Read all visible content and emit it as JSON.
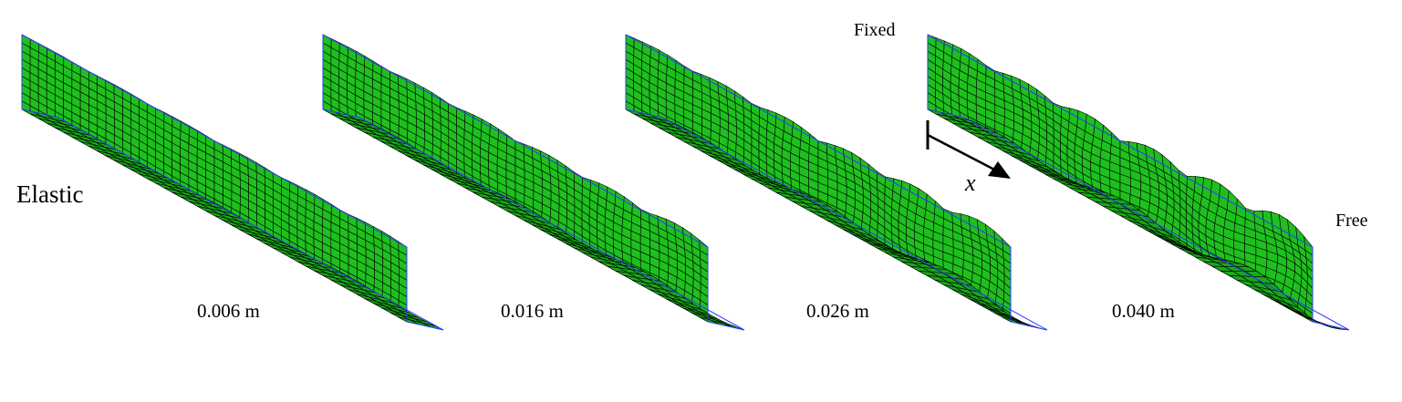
{
  "labels": {
    "material": "Elastic",
    "fixed_end": "Fixed",
    "free_end": "Free",
    "axis": "x"
  },
  "panels": [
    {
      "displacement": "0.006 m",
      "amplitude": 0.006
    },
    {
      "displacement": "0.016 m",
      "amplitude": 0.016
    },
    {
      "displacement": "0.026 m",
      "amplitude": 0.026
    },
    {
      "displacement": "0.040 m",
      "amplitude": 0.04
    }
  ],
  "colors": {
    "mesh_fill": "#1ec01e",
    "mesh_shade": "#18a818",
    "mesh_line": "#000000",
    "reference_outline": "#2b3cff"
  }
}
